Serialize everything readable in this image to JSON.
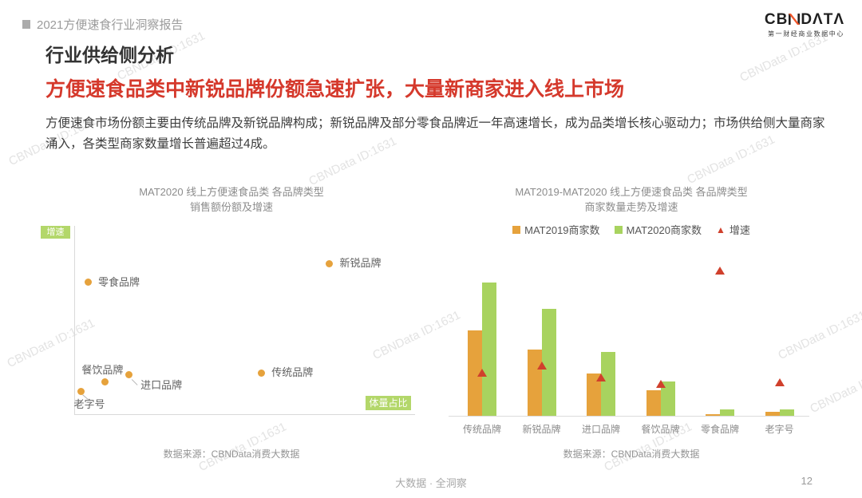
{
  "header": {
    "report_tag": "2021方便速食行业洞察报告",
    "logo_cb": "CB",
    "logo_data": "DΛTΛ",
    "logo_subtitle": "第一财经商业数据中心"
  },
  "titles": {
    "section_title": "行业供给侧分析",
    "headline": "方便速食品类中新锐品牌份额急速扩张，大量新商家进入线上市场",
    "body": "方便速食市场份额主要由传统品牌及新锐品牌构成；新锐品牌及部分零食品牌近一年高速增长，成为品类增长核心驱动力；市场供给侧大量商家涌入，各类型商家数量增长普遍超过4成。"
  },
  "left_chart": {
    "title_line1": "MAT2020 线上方便速食品类 各品牌类型",
    "title_line2": "销售额份额及增速"
  },
  "right_chart": {
    "title_line1": "MAT2019-MAT2020 线上方便速食品类 各品牌类型",
    "title_line2": "商家数量走势及增速"
  },
  "colors": {
    "headline_red": "#d5392c",
    "orange": "#e6a23c",
    "green_bar": "#a8d35f",
    "green_label": "#b3d76a",
    "triangle_red": "#d0402c",
    "axis_gray": "#d9d9d9"
  },
  "watermark": {
    "text": "CBNData ID:1631"
  },
  "footer": {
    "slogan": "大数据 · 全洞察",
    "page_number": "12"
  },
  "chart_data": [
    {
      "type": "scatter",
      "title": "MAT2020 线上方便速食品类 各品牌类型 销售额份额及增速",
      "xlabel": "体量占比",
      "ylabel": "增速",
      "axis_note": "no tick labels shown; point positions are fractions of the plot area (estimated)",
      "points": [
        {
          "label": "新锐品牌",
          "x_rel": 0.75,
          "y_rel": 0.8,
          "label_pos": "right"
        },
        {
          "label": "零食品牌",
          "x_rel": 0.04,
          "y_rel": 0.7,
          "label_pos": "right"
        },
        {
          "label": "传统品牌",
          "x_rel": 0.55,
          "y_rel": 0.22,
          "label_pos": "right"
        },
        {
          "label": "进口品牌",
          "x_rel": 0.16,
          "y_rel": 0.21,
          "label_pos": "leader-br"
        },
        {
          "label": "餐饮品牌",
          "x_rel": 0.09,
          "y_rel": 0.17,
          "label_pos": "above"
        },
        {
          "label": "老字号",
          "x_rel": 0.02,
          "y_rel": 0.12,
          "label_pos": "leader-bl"
        }
      ],
      "source": "数据来源：CBNData消费大数据"
    },
    {
      "type": "bar",
      "title": "MAT2019-MAT2020 线上方便速食品类 各品牌类型 商家数量走势及增速",
      "categories": [
        "传统品牌",
        "新锐品牌",
        "进口品牌",
        "餐饮品牌",
        "零食品牌",
        "老字号"
      ],
      "series": [
        {
          "name": "MAT2019商家数",
          "values": [
            64,
            50,
            32,
            19,
            1,
            3
          ]
        },
        {
          "name": "MAT2020商家数",
          "values": [
            100,
            80,
            48,
            26,
            5,
            5
          ]
        }
      ],
      "growth_series": {
        "name": "增速",
        "values_pct_est": [
          52,
          61,
          46,
          38,
          175,
          40
        ]
      },
      "ylim": [
        0,
        105
      ],
      "value_note": "no numeric axis shown; bar values are relative units (tallest bar = 100), growth % estimated from marker height",
      "legend_position": "top",
      "grid": false,
      "source": "数据来源：CBNData消费大数据"
    }
  ]
}
